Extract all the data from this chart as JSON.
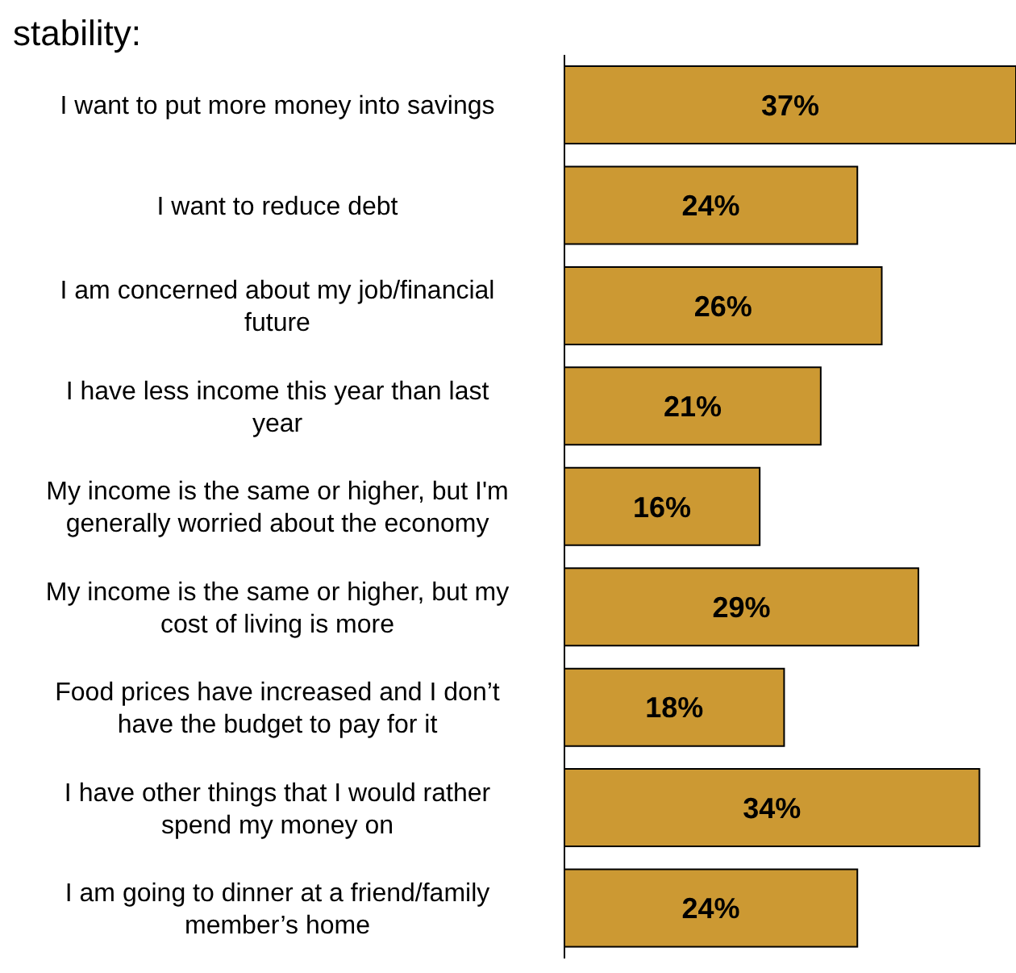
{
  "chart_data": {
    "type": "bar",
    "orientation": "horizontal",
    "title": "stability:",
    "categories": [
      "I want to put more money into savings",
      "I want to reduce debt",
      "I am concerned about my job/financial future",
      "I have less income this year than last year",
      "My income is the same or higher, but I'm generally worried about the economy",
      "My income is the same or higher, but my cost of living is more",
      "Food prices have increased and I don’t have the budget to pay for it",
      "I have other things that I would rather spend my money on",
      "I am going to dinner at a friend/family member’s home"
    ],
    "values": [
      37,
      24,
      26,
      21,
      16,
      29,
      18,
      34,
      24
    ],
    "value_labels": [
      "37%",
      "24%",
      "26%",
      "21%",
      "16%",
      "29%",
      "18%",
      "34%",
      "24%"
    ],
    "color": "#cc9933",
    "xlim": [
      0,
      37
    ],
    "tick_labels": "y"
  }
}
